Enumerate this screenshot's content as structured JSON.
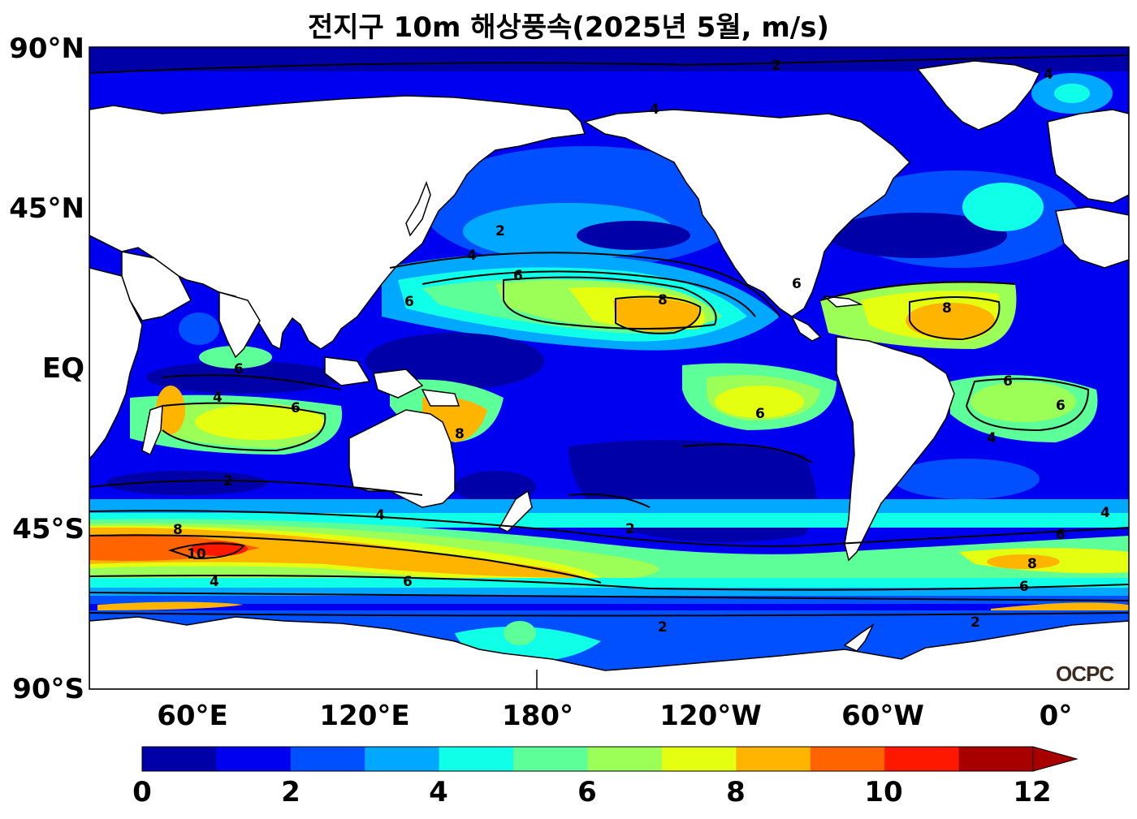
{
  "title": "전지구 10m 해상풍속(2025년 5월, m/s)",
  "lat_ticks": [
    "90°N",
    "45°N",
    "EQ",
    "45°S",
    "90°S"
  ],
  "lon_ticks": [
    "60°E",
    "120°E",
    "180°",
    "120°W",
    "60°W",
    "0°"
  ],
  "colorbar": {
    "ticks": [
      "0",
      "2",
      "4",
      "6",
      "8",
      "10",
      "12"
    ],
    "colors": [
      "#0000a8",
      "#0000f0",
      "#0050ff",
      "#00a8ff",
      "#10ffe8",
      "#5cff98",
      "#9cff58",
      "#e4ff10",
      "#ffb400",
      "#ff6400",
      "#ff1800",
      "#a80000"
    ],
    "extend": "max"
  },
  "contour_labels": [
    "2",
    "4",
    "6",
    "8",
    "10"
  ],
  "logo": "OCPC",
  "land_color": "#ffffff"
}
